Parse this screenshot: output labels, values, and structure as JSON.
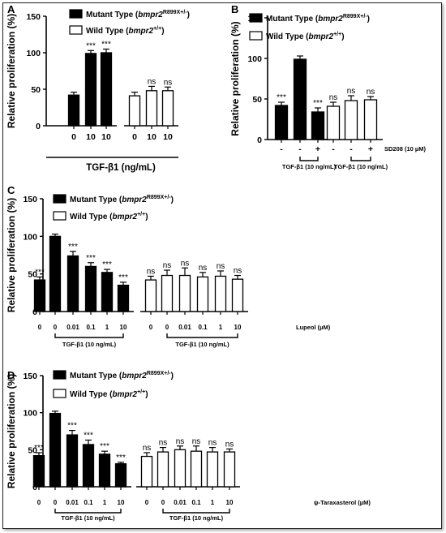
{
  "chart_data": [
    {
      "panel": "A",
      "type": "bar",
      "ylabel": "Relative proliferation (%)",
      "ylim": [
        0,
        150
      ],
      "yticks": [
        0,
        50,
        100,
        150
      ],
      "legend": [
        {
          "name": "Mutant Type",
          "gene": "bmpr2",
          "sup": "R899X+/-",
          "fill": "#000000"
        },
        {
          "name": "Wild Type",
          "gene": "bmpr2",
          "sup": "+/+",
          "fill": "#ffffff"
        }
      ],
      "xlabel": "TGF-β1 (ng/mL)",
      "series": [
        {
          "name": "Mutant Type",
          "values": [
            42,
            99,
            100
          ],
          "errors": [
            4,
            4,
            5
          ],
          "labels": [
            "",
            "***",
            "***"
          ],
          "categories": [
            "0",
            "10",
            "10"
          ]
        },
        {
          "name": "Wild Type",
          "values": [
            41,
            48,
            48
          ],
          "errors": [
            5,
            6,
            5
          ],
          "labels": [
            "",
            "ns",
            "ns"
          ],
          "categories": [
            "0",
            "10",
            "10"
          ]
        }
      ]
    },
    {
      "panel": "B",
      "type": "bar",
      "ylabel": "Relative proliferation (%)",
      "ylim": [
        0,
        150
      ],
      "yticks": [
        0,
        50,
        100,
        150
      ],
      "legend": [
        {
          "name": "Mutant Type",
          "gene": "bmpr2",
          "sup": "R899X+/-",
          "fill": "#000000"
        },
        {
          "name": "Wild Type",
          "gene": "bmpr2",
          "sup": "+/+",
          "fill": "#ffffff"
        }
      ],
      "treatment_label": "SD208 (10 µM)",
      "group_note": "TGF-β1 (10 ng/mL)",
      "series": [
        {
          "name": "Mutant Type",
          "values": [
            42,
            99,
            34
          ],
          "errors": [
            4,
            4,
            5
          ],
          "labels": [
            "***",
            "",
            "***"
          ],
          "categories": [
            "-",
            "-",
            "+"
          ]
        },
        {
          "name": "Wild Type",
          "values": [
            41,
            48,
            49
          ],
          "errors": [
            5,
            6,
            4
          ],
          "labels": [
            "ns",
            "ns",
            "ns"
          ],
          "categories": [
            "-",
            "-",
            "+"
          ]
        }
      ]
    },
    {
      "panel": "C",
      "type": "bar",
      "ylabel": "Relative proliferation (%)",
      "ylim": [
        0,
        150
      ],
      "yticks": [
        0,
        50,
        100,
        150
      ],
      "legend": [
        {
          "name": "Mutant Type",
          "gene": "bmpr2",
          "sup": "R899X+/-",
          "fill": "#000000"
        },
        {
          "name": "Wild Type",
          "gene": "bmpr2",
          "sup": "+/+",
          "fill": "#ffffff"
        }
      ],
      "treatment_label": "Lupeol (µM)",
      "group_note": "TGF-β1 (10 ng/mL)",
      "series": [
        {
          "name": "Mutant Type",
          "values": [
            42,
            100,
            74,
            60,
            52,
            35
          ],
          "errors": [
            4,
            3,
            6,
            5,
            4,
            4
          ],
          "labels": [
            "***",
            "",
            "***",
            "***",
            "***",
            "***"
          ],
          "categories": [
            "0",
            "0",
            "0.01",
            "0.1",
            "1",
            "10"
          ]
        },
        {
          "name": "Wild Type",
          "values": [
            42,
            48,
            48,
            46,
            47,
            43
          ],
          "errors": [
            5,
            7,
            10,
            6,
            7,
            5
          ],
          "labels": [
            "ns",
            "ns",
            "ns",
            "ns",
            "ns",
            "ns"
          ],
          "categories": [
            "0",
            "0",
            "0.01",
            "0.1",
            "1",
            "10"
          ]
        }
      ]
    },
    {
      "panel": "D",
      "type": "bar",
      "ylabel": "Relative proliferation (%)",
      "ylim": [
        0,
        150
      ],
      "yticks": [
        0,
        50,
        100,
        150
      ],
      "legend": [
        {
          "name": "Mutant Type",
          "gene": "bmpr2",
          "sup": "R899X+/-",
          "fill": "#000000"
        },
        {
          "name": "Wild Type",
          "gene": "bmpr2",
          "sup": "+/+",
          "fill": "#ffffff"
        }
      ],
      "treatment_label": "ψ-Taraxasterol (µM)",
      "group_note": "TGF-β1 (10 ng/mL)",
      "series": [
        {
          "name": "Mutant Type",
          "values": [
            42,
            99,
            70,
            57,
            44,
            31
          ],
          "errors": [
            4,
            3,
            6,
            6,
            4,
            2
          ],
          "labels": [
            "***",
            "",
            "***",
            "***",
            "***",
            "***"
          ],
          "categories": [
            "0",
            "0",
            "0.01",
            "0.1",
            "1",
            "10"
          ]
        },
        {
          "name": "Wild Type",
          "values": [
            41,
            47,
            50,
            48,
            47,
            47
          ],
          "errors": [
            5,
            6,
            5,
            7,
            6,
            4
          ],
          "labels": [
            "ns",
            "ns",
            "ns",
            "ns",
            "ns",
            "ns"
          ],
          "categories": [
            "0",
            "0",
            "0.01",
            "0.1",
            "1",
            "10"
          ]
        }
      ]
    }
  ]
}
